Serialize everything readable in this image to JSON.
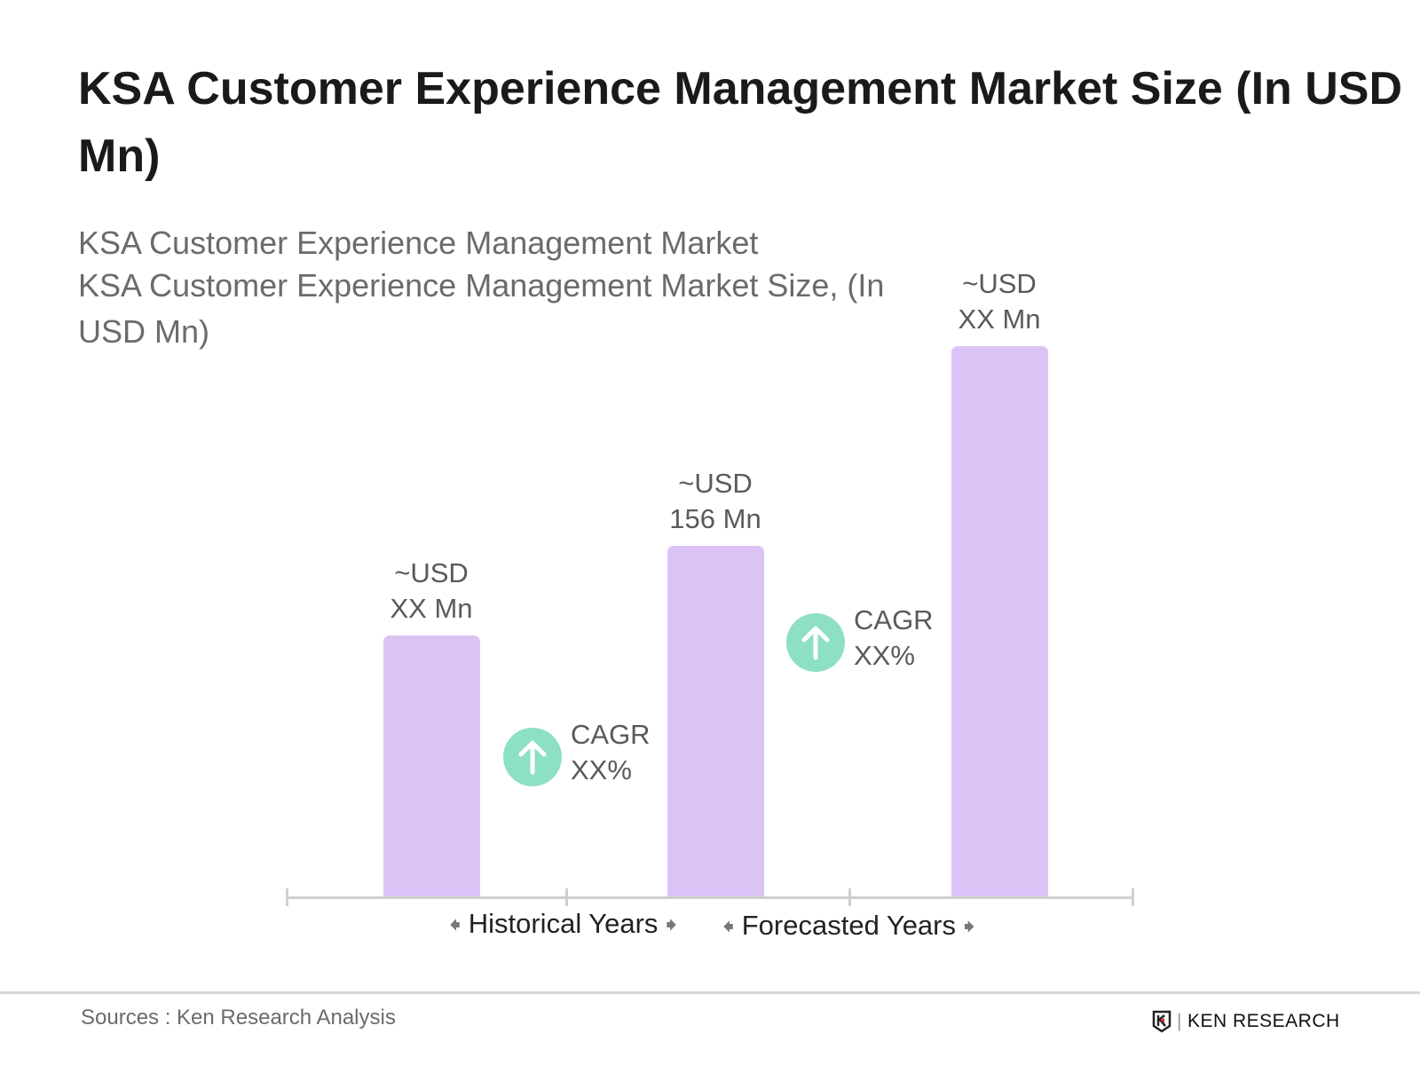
{
  "chart_data": {
    "type": "bar",
    "title": "KSA Customer Experience Management Market Size (In USD Mn)",
    "subtitle": [
      "KSA Customer Experience Management Market",
      "KSA Customer Experience Management Market Size, (In USD Mn)"
    ],
    "categories": [
      "",
      "",
      ""
    ],
    "values": [
      116,
      156,
      245
    ],
    "data_labels": [
      [
        "~USD",
        "XX Mn"
      ],
      [
        "~USD",
        "156 Mn"
      ],
      [
        "~USD",
        "XX Mn"
      ]
    ],
    "annotations": [
      {
        "label": "CAGR",
        "value": "XX%"
      },
      {
        "label": "CAGR",
        "value": "XX%"
      }
    ],
    "periods": [
      "Historical Years",
      "Forecasted Years"
    ],
    "grid": false,
    "colors": {
      "bar": "#dcc3f6",
      "cagr_icon": "#8de0c2",
      "axis": "#cfcfcf"
    }
  },
  "footer": {
    "source": "Sources : Ken Research Analysis",
    "logo_text": "KEN RESEARCH"
  }
}
